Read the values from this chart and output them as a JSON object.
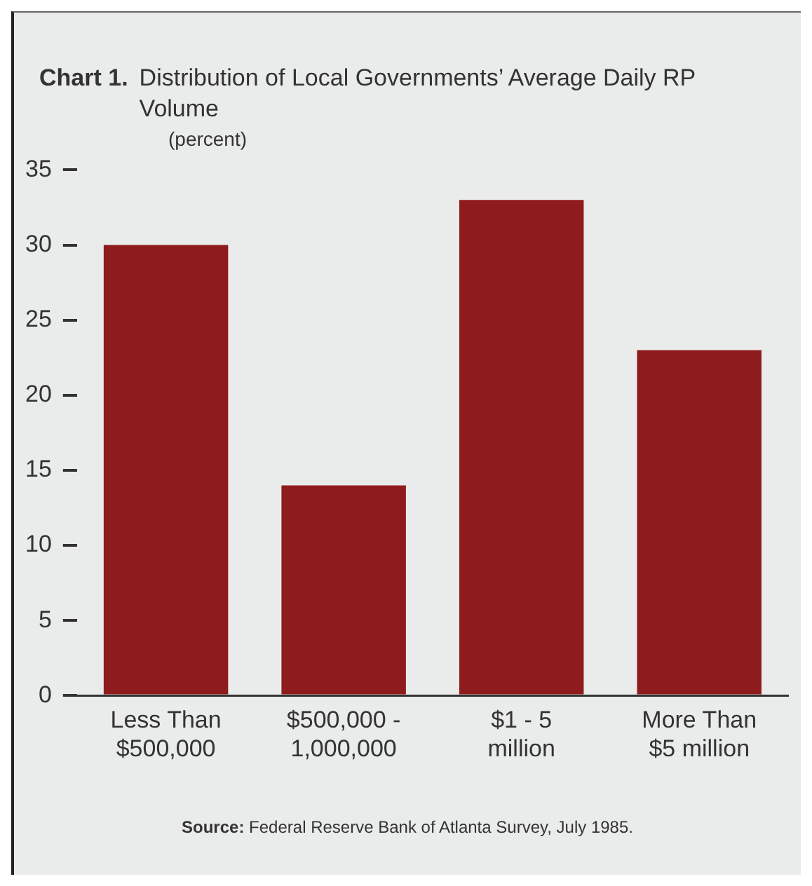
{
  "chart_data": {
    "type": "bar",
    "title": "Chart 1. Distribution of Local Governments’ Average Daily RP Volume",
    "ylabel": "(percent)",
    "categories": [
      "Less Than\n$500,000",
      "$500,000 -\n1,000,000",
      "$1 - 5\nmillion",
      "More Than\n$5 million"
    ],
    "values": [
      30,
      14,
      33,
      23
    ],
    "color": "#8e1b1e",
    "ylim": [
      0,
      35
    ],
    "yticks": [
      0,
      5,
      10,
      15,
      20,
      25,
      30,
      35
    ],
    "grid": false,
    "annotations": [
      "Source: Federal Reserve Bank of Atlanta Survey, July 1985."
    ]
  }
}
